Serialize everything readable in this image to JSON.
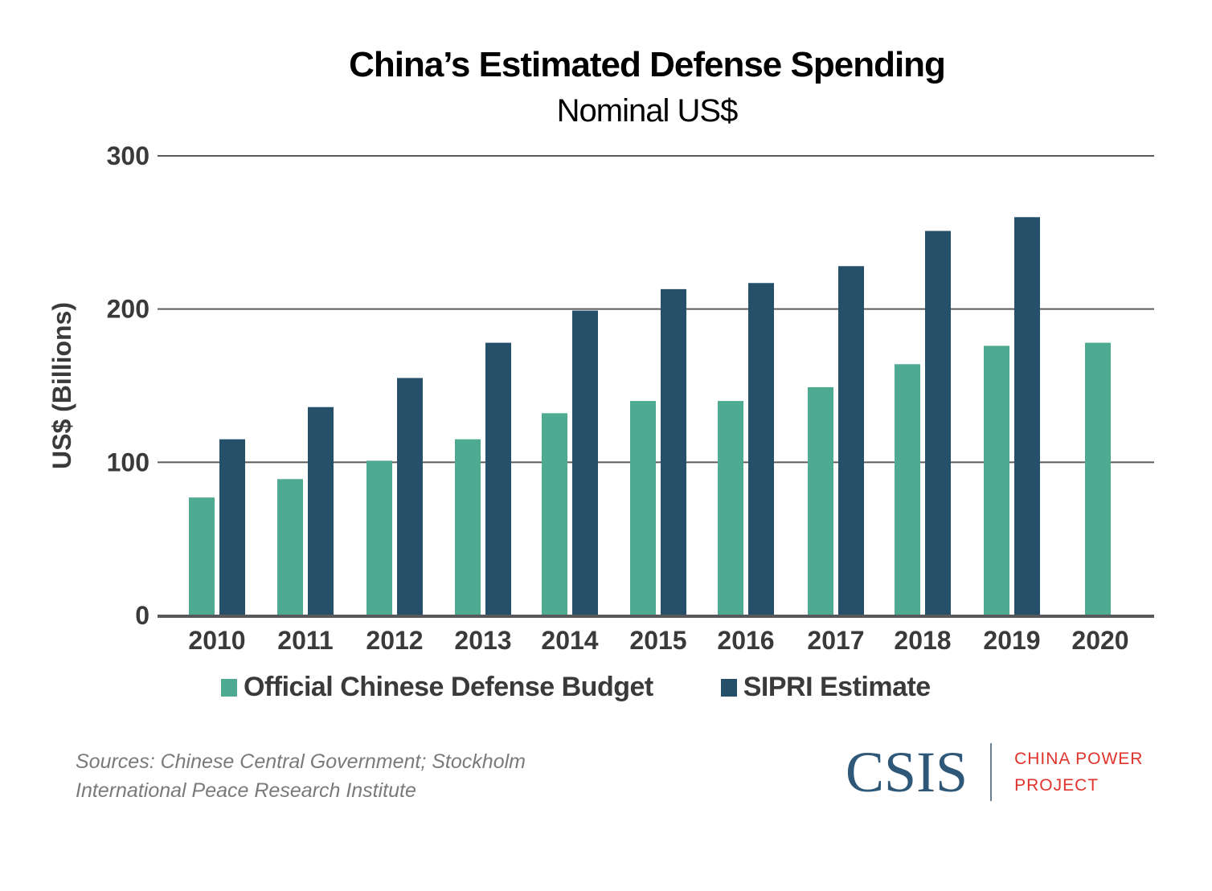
{
  "chart_data": {
    "type": "bar",
    "title": "China’s Estimated Defense Spending",
    "subtitle": "Nominal US$",
    "xlabel": "",
    "ylabel": "US$ (Billions)",
    "ylim": [
      0,
      300
    ],
    "yticks": [
      0,
      100,
      200,
      300
    ],
    "grid": true,
    "legend_position": "bottom",
    "categories": [
      "2010",
      "2011",
      "2012",
      "2013",
      "2014",
      "2015",
      "2016",
      "2017",
      "2018",
      "2019",
      "2020"
    ],
    "series": [
      {
        "name": "Official Chinese Defense Budget",
        "color": "#4faa92",
        "values": [
          77,
          89,
          101,
          115,
          132,
          140,
          140,
          149,
          164,
          176,
          178
        ]
      },
      {
        "name": "SIPRI Estimate",
        "color": "#264f6a",
        "values": [
          115,
          136,
          155,
          178,
          199,
          213,
          217,
          228,
          251,
          260,
          null
        ]
      }
    ]
  },
  "footer": {
    "sources_line1": "Sources: Chinese Central Government; Stockholm",
    "sources_line2": "International Peace Research Institute",
    "logo_text": "CSIS",
    "project_line1": "CHINA POWER",
    "project_line2": "PROJECT"
  }
}
